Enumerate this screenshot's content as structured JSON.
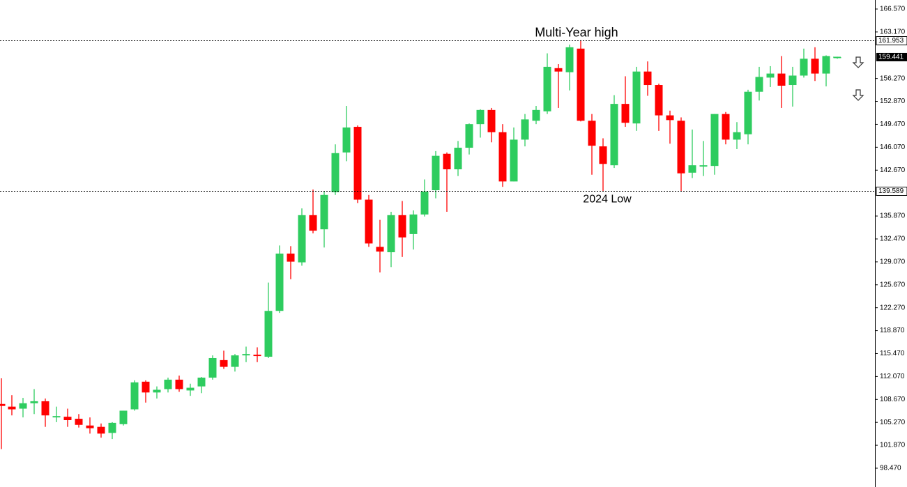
{
  "chart_data": {
    "type": "candlestick",
    "open": [
      108.0,
      107.6,
      107.3,
      108.1,
      108.4,
      106.0,
      106.1,
      105.8,
      104.8,
      104.6,
      103.7,
      105.0,
      107.2,
      111.3,
      109.7,
      110.2,
      111.6,
      110.0,
      110.6,
      111.9,
      114.5,
      113.5,
      115.2,
      115.3,
      115.0,
      121.8,
      130.3,
      129.0,
      136.0,
      133.9,
      139.4,
      145.3,
      149.1,
      138.3,
      131.3,
      130.5,
      136.0,
      133.2,
      136.1,
      139.7,
      145.1,
      142.8,
      146.0,
      149.5,
      151.6,
      148.3,
      141.0,
      147.2,
      150.0,
      151.4,
      157.8,
      157.2,
      160.7,
      150.0,
      146.2,
      143.4,
      152.5,
      149.6,
      157.3,
      155.3,
      150.8,
      150.0,
      142.3,
      143.2,
      143.3,
      151.0,
      147.2,
      148.0,
      154.3,
      156.4,
      157.0,
      155.3,
      156.7,
      159.2,
      157.0,
      159.3
    ],
    "high": [
      111.8,
      109.3,
      108.9,
      110.2,
      108.8,
      107.6,
      107.3,
      106.5,
      106.0,
      105.1,
      105.3,
      107.0,
      111.5,
      111.5,
      110.6,
      111.9,
      112.2,
      111.0,
      112.0,
      115.2,
      115.9,
      115.4,
      116.5,
      116.4,
      126.0,
      131.5,
      131.4,
      137.0,
      139.8,
      139.5,
      146.5,
      152.2,
      149.3,
      139.0,
      135.3,
      136.5,
      138.1,
      136.7,
      141.3,
      145.5,
      145.3,
      147.0,
      149.6,
      151.7,
      151.9,
      149.5,
      149.0,
      151.0,
      152.2,
      160.0,
      158.4,
      161.3,
      161.95,
      151.0,
      147.4,
      153.8,
      156.6,
      158.0,
      158.8,
      155.5,
      151.5,
      150.5,
      148.7,
      147.0,
      151.0,
      151.3,
      149.8,
      154.6,
      158.0,
      158.1,
      159.6,
      158.0,
      160.7,
      160.9,
      159.7,
      159.5
    ],
    "low": [
      101.3,
      106.3,
      106.0,
      106.5,
      104.6,
      105.3,
      104.6,
      104.5,
      103.6,
      103.0,
      102.8,
      104.8,
      107.0,
      108.2,
      108.8,
      109.7,
      109.8,
      109.2,
      109.6,
      111.6,
      113.2,
      112.8,
      114.2,
      114.2,
      114.8,
      121.5,
      126.5,
      128.5,
      133.3,
      131.2,
      139.0,
      144.0,
      137.8,
      131.3,
      127.5,
      128.3,
      129.8,
      130.9,
      135.8,
      138.5,
      136.5,
      141.8,
      145.0,
      147.5,
      146.8,
      140.2,
      141.0,
      146.2,
      149.5,
      151.0,
      151.9,
      154.5,
      149.9,
      142.0,
      139.6,
      143.0,
      149.1,
      148.5,
      153.7,
      148.5,
      146.6,
      139.6,
      141.5,
      141.8,
      142.0,
      146.5,
      145.8,
      146.5,
      153.0,
      155.0,
      151.9,
      152.1,
      156.4,
      155.9,
      155.1,
      159.2
    ],
    "close": [
      107.7,
      107.2,
      108.1,
      108.4,
      106.3,
      106.2,
      105.6,
      104.9,
      104.4,
      103.6,
      105.2,
      107.0,
      111.2,
      109.7,
      110.1,
      111.6,
      110.2,
      110.4,
      111.9,
      114.8,
      113.5,
      115.2,
      115.4,
      115.1,
      121.8,
      130.3,
      129.1,
      136.0,
      133.7,
      139.0,
      145.2,
      149.0,
      138.3,
      131.8,
      130.6,
      136.0,
      132.7,
      136.1,
      139.5,
      144.8,
      142.8,
      146.0,
      149.5,
      151.6,
      148.3,
      141.0,
      147.2,
      150.2,
      151.6,
      158.0,
      157.3,
      160.9,
      150.0,
      146.3,
      143.6,
      152.5,
      149.7,
      157.3,
      155.3,
      150.8,
      150.1,
      142.2,
      143.4,
      143.4,
      151.0,
      147.2,
      148.3,
      154.3,
      156.5,
      157.0,
      155.2,
      156.7,
      159.2,
      157.0,
      159.6,
      159.44
    ],
    "up_color": "#2ecc5f",
    "down_color": "#ff0000",
    "ylim": [
      95.68,
      167.91
    ],
    "yticks": [
      {
        "value": 166.57,
        "label": "166.570"
      },
      {
        "value": 163.17,
        "label": "163.170"
      },
      {
        "value": 156.27,
        "label": "156.270"
      },
      {
        "value": 152.87,
        "label": "152.870"
      },
      {
        "value": 149.47,
        "label": "149.470"
      },
      {
        "value": 146.07,
        "label": "146.070"
      },
      {
        "value": 142.67,
        "label": "142.670"
      },
      {
        "value": 135.87,
        "label": "135.870"
      },
      {
        "value": 132.47,
        "label": "132.470"
      },
      {
        "value": 129.07,
        "label": "129.070"
      },
      {
        "value": 125.67,
        "label": "125.670"
      },
      {
        "value": 122.27,
        "label": "122.270"
      },
      {
        "value": 118.87,
        "label": "118.870"
      },
      {
        "value": 115.47,
        "label": "115.470"
      },
      {
        "value": 112.07,
        "label": "112.070"
      },
      {
        "value": 108.67,
        "label": "108.670"
      },
      {
        "value": 105.27,
        "label": "105.270"
      },
      {
        "value": 101.87,
        "label": "101.870"
      },
      {
        "value": 98.47,
        "label": "98.470"
      }
    ],
    "levels": [
      {
        "value": 161.953,
        "label": "161.953",
        "annotation": "Multi-Year high"
      },
      {
        "value": 139.589,
        "label": "139.589",
        "annotation": "2024 Low"
      }
    ],
    "last_price": {
      "value": 159.441,
      "label": "159.441"
    }
  }
}
